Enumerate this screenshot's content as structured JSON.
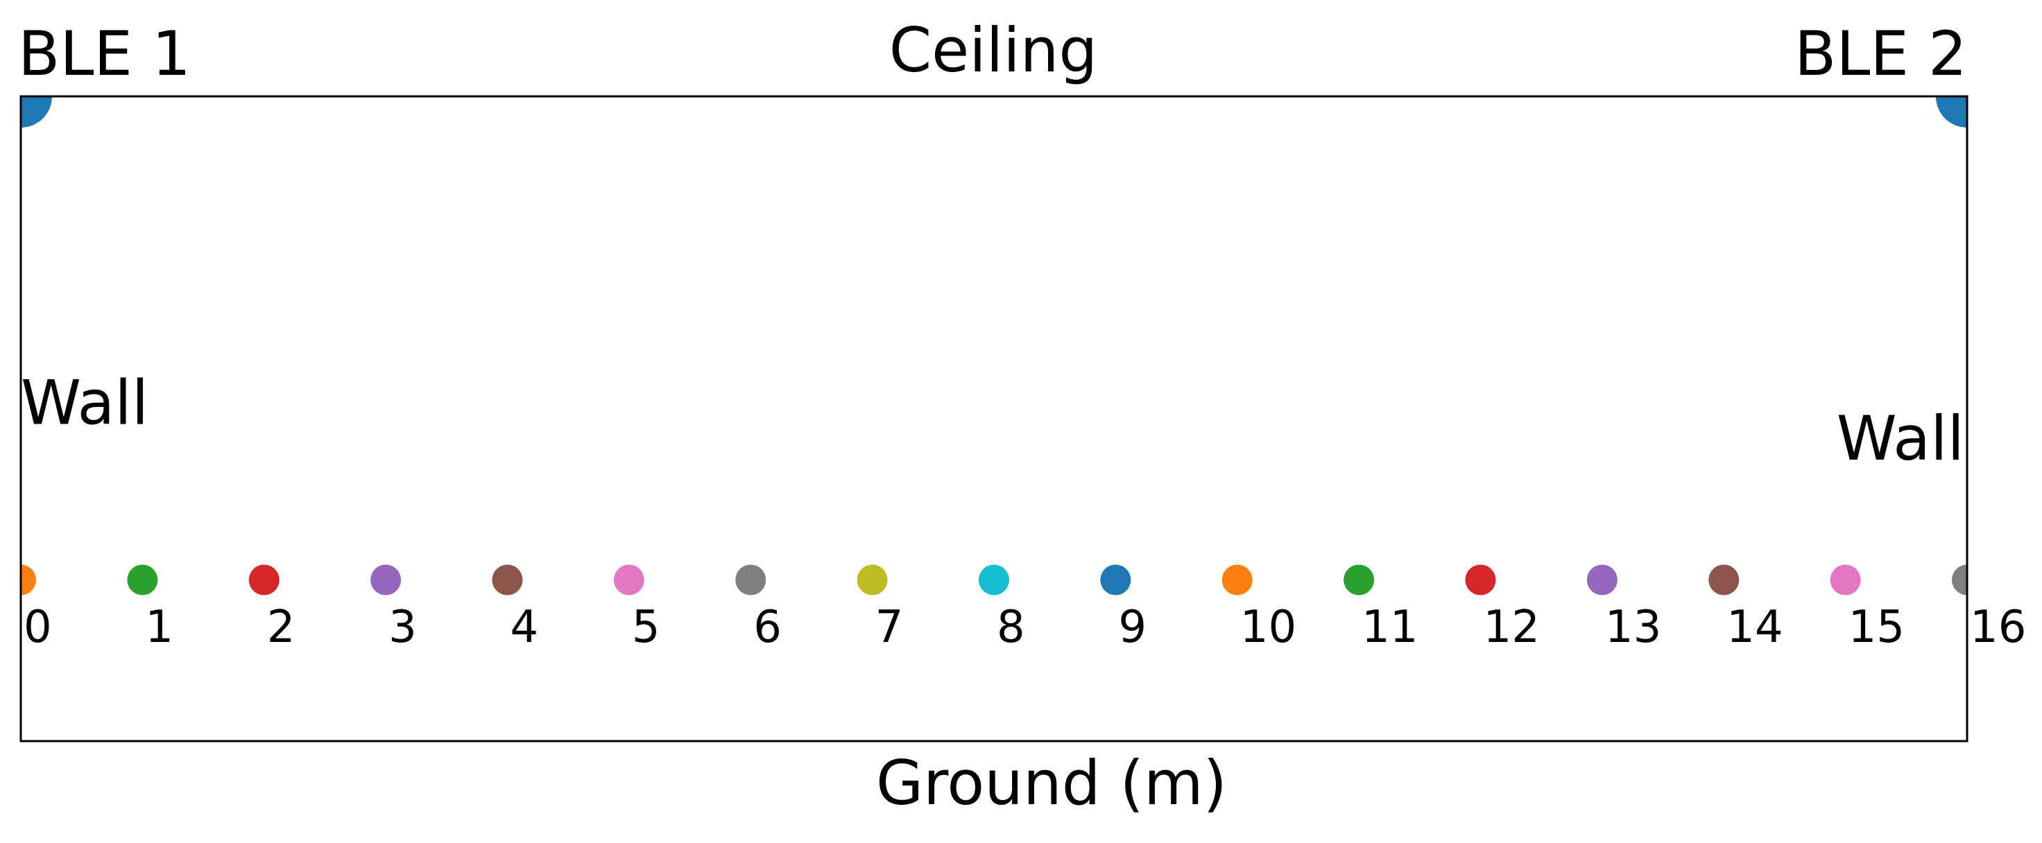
{
  "chart_data": {
    "type": "scatter",
    "title": "Ceiling",
    "xlabel": "Ground (m)",
    "xlim": [
      0,
      16
    ],
    "ylim": [
      0,
      4
    ],
    "x": [
      0,
      1,
      2,
      3,
      4,
      5,
      6,
      7,
      8,
      9,
      10,
      11,
      12,
      13,
      14,
      15,
      16
    ],
    "values": [
      1,
      1,
      1,
      1,
      1,
      1,
      1,
      1,
      1,
      1,
      1,
      1,
      1,
      1,
      1,
      1,
      1
    ],
    "colors": [
      "#ff7f0e",
      "#2ca02c",
      "#d62728",
      "#9467bd",
      "#8c564b",
      "#e377c2",
      "#7f7f7f",
      "#bcbd22",
      "#17becf",
      "#1f77b4",
      "#ff7f0e",
      "#2ca02c",
      "#d62728",
      "#9467bd",
      "#8c564b",
      "#e377c2",
      "#7f7f7f"
    ],
    "anchors": [
      {
        "label": "BLE 1",
        "x": 0,
        "y": 4
      },
      {
        "label": "BLE 2",
        "x": 16,
        "y": 4
      }
    ],
    "anchor_color": "#1f77b4",
    "annotations": [
      {
        "text": "Wall",
        "x": 0,
        "y": 2.07
      },
      {
        "text": "Wall",
        "x": 16,
        "y": 1.85
      }
    ]
  }
}
